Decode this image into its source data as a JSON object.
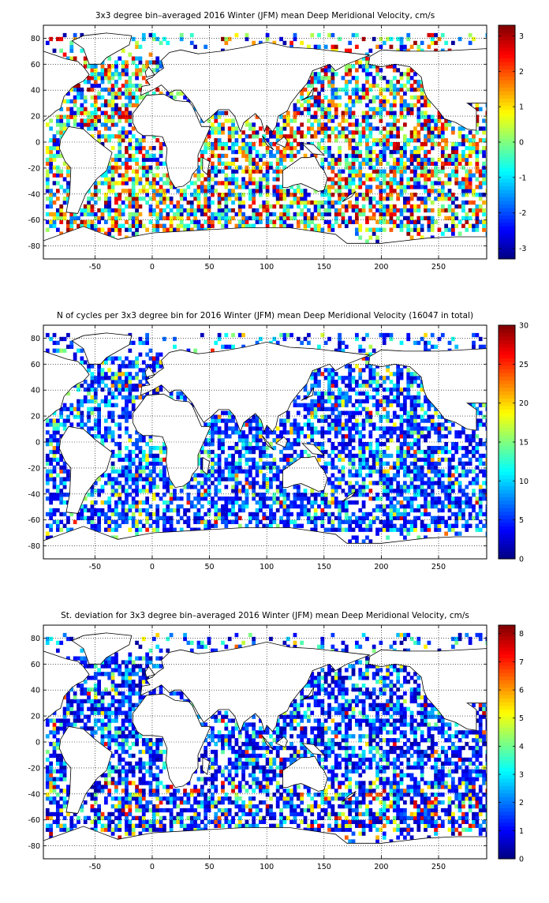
{
  "chart_data": [
    {
      "type": "heatmap",
      "title": "3x3 degree bin–averaged 2016 Winter (JFM) mean Deep Meridional Velocity, cm/s",
      "xlabel": "",
      "ylabel": "",
      "xlim": [
        -95,
        292
      ],
      "ylim": [
        -90,
        90
      ],
      "x_ticks": [
        -50,
        0,
        50,
        100,
        150,
        200,
        250
      ],
      "y_ticks": [
        80,
        60,
        40,
        20,
        0,
        -20,
        -40,
        -60,
        -80
      ],
      "grid": true,
      "bin_size_deg": 3,
      "colorbar": {
        "min": -3.3,
        "max": 3.3,
        "ticks": [
          3,
          2,
          1,
          0,
          -1,
          -2,
          -3
        ],
        "colormap": "jet"
      },
      "mode": "signed",
      "seed": 11,
      "density": 0.6
    },
    {
      "type": "heatmap",
      "title": "N of cycles per 3x3 degree bin for 2016 Winter (JFM) mean Deep Meridional Velocity (16047 in total)",
      "xlabel": "",
      "ylabel": "",
      "xlim": [
        -95,
        292
      ],
      "ylim": [
        -90,
        90
      ],
      "x_ticks": [
        -50,
        0,
        50,
        100,
        150,
        200,
        250
      ],
      "y_ticks": [
        80,
        60,
        40,
        20,
        0,
        -20,
        -40,
        -60,
        -80
      ],
      "grid": true,
      "bin_size_deg": 3,
      "total_cycles": 16047,
      "colorbar": {
        "min": 0,
        "max": 30,
        "ticks": [
          30,
          25,
          20,
          15,
          10,
          5,
          0
        ],
        "colormap": "jet"
      },
      "mode": "count",
      "seed": 29,
      "density": 0.6
    },
    {
      "type": "heatmap",
      "title": "St. deviation for 3x3 degree bin–averaged 2016 Winter (JFM) mean Deep Meridional Velocity, cm/s",
      "xlabel": "",
      "ylabel": "",
      "xlim": [
        -95,
        292
      ],
      "ylim": [
        -90,
        90
      ],
      "x_ticks": [
        -50,
        0,
        50,
        100,
        150,
        200,
        250
      ],
      "y_ticks": [
        80,
        60,
        40,
        20,
        0,
        -20,
        -40,
        -60,
        -80
      ],
      "grid": true,
      "bin_size_deg": 3,
      "colorbar": {
        "min": 0,
        "max": 8.3,
        "ticks": [
          8,
          7,
          6,
          5,
          4,
          3,
          2,
          1,
          0
        ],
        "colormap": "jet"
      },
      "mode": "std",
      "seed": 47,
      "density": 0.6
    }
  ],
  "colors": {
    "axes": "#000000",
    "background": "#ffffff",
    "grid": "#000000"
  }
}
